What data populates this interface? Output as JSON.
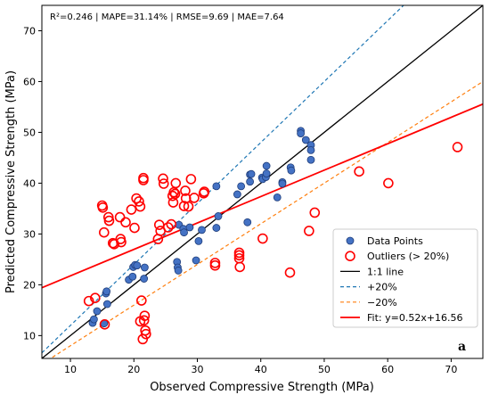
{
  "chart_data": {
    "type": "scatter",
    "metrics_text": "R²=0.246 | MAPE=31.14% | RMSE=9.69 | MAE=7.64",
    "panel_letter": "a",
    "xlabel": "Observed Compressive Strength (MPa)",
    "ylabel": "Predicted Compressive Strength (MPa)",
    "xlim": [
      5.5,
      75
    ],
    "ylim": [
      5.5,
      75
    ],
    "x_ticks": [
      10,
      20,
      30,
      40,
      50,
      60,
      70
    ],
    "y_ticks": [
      10,
      20,
      30,
      40,
      50,
      60,
      70
    ],
    "grid": false,
    "legend_position": "lower-right",
    "colors": {
      "data_points": "#4472c4",
      "data_points_edge": "#1f3d7a",
      "outliers": "#ff0000",
      "one_to_one": "#000000",
      "plus20": "#1f77b4",
      "minus20": "#ff7f0e",
      "fit": "#ff0000"
    },
    "legend": [
      {
        "key": "data_points",
        "label": "Data Points"
      },
      {
        "key": "outliers",
        "label": "Outliers (> 20%)"
      },
      {
        "key": "one_to_one",
        "label": "1:1 line"
      },
      {
        "key": "plus20",
        "label": "+20%"
      },
      {
        "key": "minus20",
        "label": "−20%"
      },
      {
        "key": "fit",
        "label": "Fit: y=0.52x+16.56"
      }
    ],
    "lines": {
      "one_to_one": {
        "slope": 1.0,
        "intercept": 0
      },
      "plus20": {
        "slope": 1.2,
        "intercept": 0
      },
      "minus20": {
        "slope": 0.8,
        "intercept": 0
      },
      "fit": {
        "slope": 0.52,
        "intercept": 16.56
      }
    },
    "series": [
      {
        "name": "Data Points",
        "points": [
          [
            13.5,
            12.5
          ],
          [
            13.7,
            13.2
          ],
          [
            14.2,
            14.8
          ],
          [
            15.3,
            12.4
          ],
          [
            15.6,
            18.3
          ],
          [
            15.7,
            18.7
          ],
          [
            15.8,
            16.2
          ],
          [
            19.2,
            21.0
          ],
          [
            19.8,
            21.6
          ],
          [
            19.9,
            23.5
          ],
          [
            20.2,
            23.9
          ],
          [
            20.5,
            23.8
          ],
          [
            21.6,
            21.2
          ],
          [
            21.7,
            23.4
          ],
          [
            26.8,
            24.5
          ],
          [
            26.9,
            23.4
          ],
          [
            27.0,
            22.8
          ],
          [
            27.1,
            31.8
          ],
          [
            27.8,
            31.0
          ],
          [
            27.9,
            30.3
          ],
          [
            28.8,
            31.3
          ],
          [
            29.8,
            24.8
          ],
          [
            30.2,
            28.6
          ],
          [
            30.7,
            30.8
          ],
          [
            33.0,
            31.2
          ],
          [
            33.0,
            39.4
          ],
          [
            33.3,
            33.5
          ],
          [
            36.3,
            37.8
          ],
          [
            36.9,
            39.4
          ],
          [
            37.9,
            32.3
          ],
          [
            38.3,
            40.3
          ],
          [
            38.3,
            41.7
          ],
          [
            38.5,
            41.8
          ],
          [
            40.2,
            41.1
          ],
          [
            40.3,
            40.8
          ],
          [
            40.8,
            41.2
          ],
          [
            40.9,
            43.4
          ],
          [
            40.9,
            41.9
          ],
          [
            42.6,
            37.2
          ],
          [
            43.4,
            40.2
          ],
          [
            43.4,
            39.9
          ],
          [
            44.7,
            43.1
          ],
          [
            44.8,
            42.5
          ],
          [
            46.3,
            50.3
          ],
          [
            46.3,
            49.8
          ],
          [
            47.1,
            48.5
          ],
          [
            47.9,
            47.5
          ],
          [
            47.9,
            46.5
          ],
          [
            47.9,
            44.6
          ]
        ]
      },
      {
        "name": "Outliers (> 20%)",
        "points": [
          [
            12.9,
            16.8
          ],
          [
            13.9,
            17.4
          ],
          [
            15.0,
            35.6
          ],
          [
            15.1,
            35.2
          ],
          [
            15.3,
            30.3
          ],
          [
            15.4,
            12.2
          ],
          [
            16.0,
            33.3
          ],
          [
            16.1,
            32.6
          ],
          [
            16.7,
            28.2
          ],
          [
            16.9,
            28.0
          ],
          [
            17.8,
            33.3
          ],
          [
            17.9,
            29.0
          ],
          [
            18.0,
            28.4
          ],
          [
            18.7,
            32.3
          ],
          [
            19.6,
            34.8
          ],
          [
            20.1,
            31.2
          ],
          [
            20.4,
            37.0
          ],
          [
            20.8,
            36.4
          ],
          [
            21.0,
            35.4
          ],
          [
            21.0,
            12.8
          ],
          [
            21.2,
            16.9
          ],
          [
            21.4,
            9.3
          ],
          [
            21.5,
            41.0
          ],
          [
            21.5,
            40.6
          ],
          [
            21.6,
            13.0
          ],
          [
            21.7,
            13.9
          ],
          [
            21.8,
            11.0
          ],
          [
            21.9,
            10.3
          ],
          [
            23.8,
            29.0
          ],
          [
            24.0,
            31.8
          ],
          [
            24.2,
            30.6
          ],
          [
            24.6,
            40.9
          ],
          [
            24.7,
            39.9
          ],
          [
            25.4,
            31.3
          ],
          [
            25.9,
            31.9
          ],
          [
            26.1,
            37.5
          ],
          [
            26.2,
            36.2
          ],
          [
            26.3,
            38.2
          ],
          [
            26.5,
            37.9
          ],
          [
            26.6,
            40.0
          ],
          [
            27.9,
            35.5
          ],
          [
            28.1,
            38.5
          ],
          [
            28.2,
            37.0
          ],
          [
            28.6,
            35.4
          ],
          [
            29.0,
            40.8
          ],
          [
            29.5,
            37.1
          ],
          [
            31.0,
            38.0
          ],
          [
            31.1,
            38.3
          ],
          [
            32.8,
            24.3
          ],
          [
            32.8,
            23.8
          ],
          [
            36.6,
            26.3
          ],
          [
            36.6,
            25.8
          ],
          [
            36.6,
            25.2
          ],
          [
            36.7,
            23.5
          ],
          [
            40.3,
            29.1
          ],
          [
            44.6,
            22.4
          ],
          [
            47.6,
            30.6
          ],
          [
            48.5,
            34.2
          ],
          [
            55.5,
            42.3
          ],
          [
            60.1,
            40.0
          ],
          [
            71.0,
            47.1
          ]
        ]
      }
    ]
  }
}
